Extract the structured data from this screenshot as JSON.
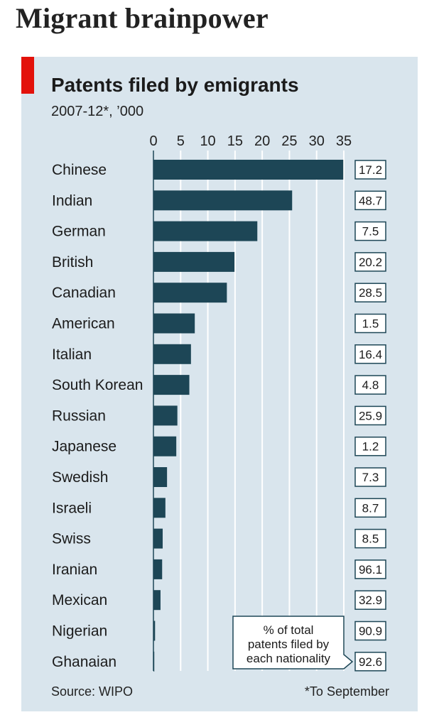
{
  "headline": "Migrant brainpower",
  "chart_data": {
    "type": "bar",
    "orientation": "horizontal",
    "title": "Patents filed by emigrants",
    "subtitle": "2007-12*, ’000",
    "categories": [
      "Chinese",
      "Indian",
      "German",
      "British",
      "Canadian",
      "American",
      "Italian",
      "South Korean",
      "Russian",
      "Japanese",
      "Swedish",
      "Israeli",
      "Swiss",
      "Iranian",
      "Mexican",
      "Nigerian",
      "Ghanaian"
    ],
    "values": [
      34.9,
      25.5,
      19.1,
      14.9,
      13.5,
      7.6,
      6.9,
      6.6,
      4.4,
      4.2,
      2.5,
      2.2,
      1.7,
      1.6,
      1.3,
      0.3,
      0.1
    ],
    "pct_of_total": [
      "17.2",
      "48.7",
      "7.5",
      "20.2",
      "28.5",
      "1.5",
      "16.4",
      "4.8",
      "25.9",
      "1.2",
      "7.3",
      "8.7",
      "8.5",
      "96.1",
      "32.9",
      "90.9",
      "92.6"
    ],
    "x_ticks": [
      "0",
      "5",
      "10",
      "15",
      "20",
      "25",
      "30",
      "35"
    ],
    "xlim": [
      0,
      35
    ],
    "grid": true,
    "callout": [
      "% of total",
      "patents filed by",
      "each nationality"
    ],
    "source": "Source: WIPO",
    "footnote": "*To September",
    "colors": {
      "bar": "#1d4656",
      "panel": "#d9e5ed",
      "accent": "#e3120b",
      "box_border": "#1d4656",
      "box_fill": "#ffffff"
    }
  }
}
